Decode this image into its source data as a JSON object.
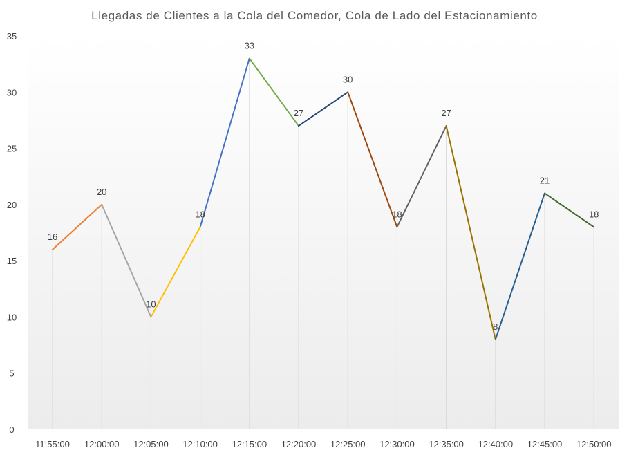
{
  "chart_data": {
    "type": "line",
    "title": "Llegadas  de  Clientes   a la Cola del Comedor,  Cola de Lado del Estacionamiento",
    "xlabel": "",
    "ylabel": "",
    "categories": [
      "11:55:00",
      "12:00:00",
      "12:05:00",
      "12:10:00",
      "12:15:00",
      "12:20:00",
      "12:25:00",
      "12:30:00",
      "12:35:00",
      "12:40:00",
      "12:45:00",
      "12:50:00"
    ],
    "series": [
      {
        "values": [
          16,
          20,
          10,
          18,
          33,
          27,
          30,
          18,
          27,
          8,
          21,
          18
        ]
      }
    ],
    "data_labels": [
      "16",
      "20",
      "10",
      "18",
      "33",
      "27",
      "30",
      "18",
      "27",
      "8",
      "21",
      "18"
    ],
    "ylim": [
      0,
      35
    ],
    "yticks": [
      0,
      5,
      10,
      15,
      20,
      25,
      30,
      35
    ],
    "grid": false,
    "drop_lines": true,
    "legend": "none",
    "segment_colors": [
      "#ED7D31",
      "#A5A5A5",
      "#FFC000",
      "#4472C4",
      "#70AD47",
      "#264478",
      "#9E480E",
      "#636363",
      "#997300",
      "#255E91",
      "#43682B"
    ],
    "plot_area_gradient": [
      "#ffffff",
      "#ececec"
    ]
  }
}
